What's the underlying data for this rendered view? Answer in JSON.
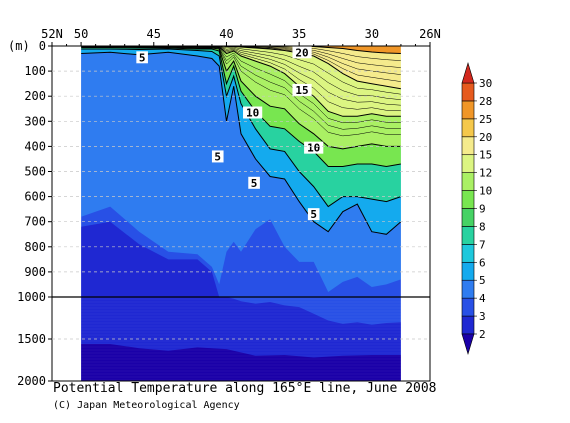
{
  "chart_data": {
    "type": "heatmap",
    "title": "Potential Temperature along 165°E line, June 2008",
    "credit": "(C) Japan Meteorological Agency",
    "ylabel": "(m)",
    "x_tick_labels": [
      "52N",
      "50",
      "45",
      "40",
      "35",
      "30",
      "26N"
    ],
    "x_ticks_lat": [
      52,
      50,
      45,
      40,
      35,
      30,
      26
    ],
    "x_range_lat": [
      50,
      28
    ],
    "y_tick_labels": [
      "0",
      "100",
      "200",
      "300",
      "400",
      "500",
      "600",
      "700",
      "800",
      "900",
      "1000",
      "1500",
      "2000"
    ],
    "y_ticks_depth": [
      0,
      100,
      200,
      300,
      400,
      500,
      600,
      700,
      800,
      900,
      1000,
      1500,
      2000
    ],
    "y_range_depth": [
      0,
      2000
    ],
    "y_scale_break_depth": 1000,
    "grid": "dashed horizontal lines at y ticks",
    "colorbar": {
      "levels": [
        "2",
        "3",
        "4",
        "5",
        "6",
        "7",
        "8",
        "9",
        "10",
        "12",
        "15",
        "20",
        "25",
        "28",
        "30"
      ],
      "colors": [
        "#1a00a8",
        "#1f28d2",
        "#2850e6",
        "#2f7cf0",
        "#14aaee",
        "#1ec8dc",
        "#28d2a0",
        "#46d264",
        "#78e650",
        "#aaf064",
        "#dcf582",
        "#f5eb8c",
        "#f5c84b",
        "#f09628",
        "#e65a1e",
        "#d2281e"
      ]
    },
    "contour_labels": [
      {
        "text": "5",
        "lat": 45.8,
        "depth": 45
      },
      {
        "text": "20",
        "lat": 34.8,
        "depth": 25
      },
      {
        "text": "15",
        "lat": 34.8,
        "depth": 175
      },
      {
        "text": "10",
        "lat": 38.2,
        "depth": 265
      },
      {
        "text": "10",
        "lat": 34.0,
        "depth": 405
      },
      {
        "text": "5",
        "lat": 40.6,
        "depth": 440
      },
      {
        "text": "5",
        "lat": 38.1,
        "depth": 545
      },
      {
        "text": "5",
        "lat": 34.0,
        "depth": 670
      }
    ],
    "isotherm_depths": {
      "lat": [
        50,
        48,
        46,
        44,
        42,
        41,
        40.5,
        40,
        39.5,
        39,
        38,
        37,
        36,
        35,
        34,
        33,
        32,
        31,
        30,
        29,
        28
      ],
      "t3": [
        720,
        700,
        790,
        850,
        850,
        900,
        1000,
        1000,
        1020,
        1050,
        1080,
        1060,
        1100,
        1120,
        1200,
        1280,
        1320,
        1300,
        1330,
        1310,
        1300
      ],
      "t4": [
        680,
        640,
        740,
        820,
        830,
        880,
        950,
        820,
        780,
        820,
        730,
        690,
        800,
        860,
        860,
        980,
        940,
        920,
        960,
        950,
        930
      ],
      "t5": [
        30,
        25,
        35,
        25,
        40,
        50,
        80,
        300,
        160,
        350,
        450,
        520,
        530,
        620,
        700,
        740,
        660,
        630,
        740,
        750,
        700
      ],
      "t6": [
        12,
        12,
        14,
        12,
        18,
        22,
        40,
        200,
        120,
        230,
        330,
        410,
        420,
        500,
        560,
        640,
        600,
        600,
        610,
        620,
        600
      ],
      "t8": [
        6,
        6,
        8,
        8,
        12,
        12,
        20,
        150,
        80,
        180,
        260,
        320,
        330,
        380,
        420,
        480,
        480,
        470,
        470,
        480,
        470
      ],
      "t10": [
        3,
        3,
        4,
        5,
        8,
        8,
        12,
        100,
        60,
        140,
        200,
        240,
        250,
        310,
        350,
        400,
        410,
        400,
        390,
        400,
        400
      ],
      "t15": [
        0,
        0,
        0,
        0,
        2,
        3,
        4,
        30,
        20,
        40,
        60,
        80,
        110,
        160,
        200,
        260,
        280,
        280,
        270,
        280,
        280
      ],
      "t20": [
        0,
        0,
        0,
        0,
        0,
        0,
        0,
        2,
        2,
        4,
        8,
        12,
        18,
        28,
        40,
        70,
        110,
        140,
        150,
        160,
        170
      ],
      "t25": [
        0,
        0,
        0,
        0,
        0,
        0,
        0,
        0,
        0,
        0,
        0,
        0,
        0,
        0,
        2,
        6,
        10,
        18,
        24,
        28,
        30
      ]
    },
    "cold_pocket_2deg": {
      "lat": [
        50,
        48,
        46,
        44,
        42,
        40,
        38,
        36,
        34,
        32,
        30,
        28
      ],
      "depth": [
        1560,
        1560,
        1610,
        1640,
        1600,
        1620,
        1700,
        1690,
        1720,
        1700,
        1690,
        1690
      ]
    }
  }
}
